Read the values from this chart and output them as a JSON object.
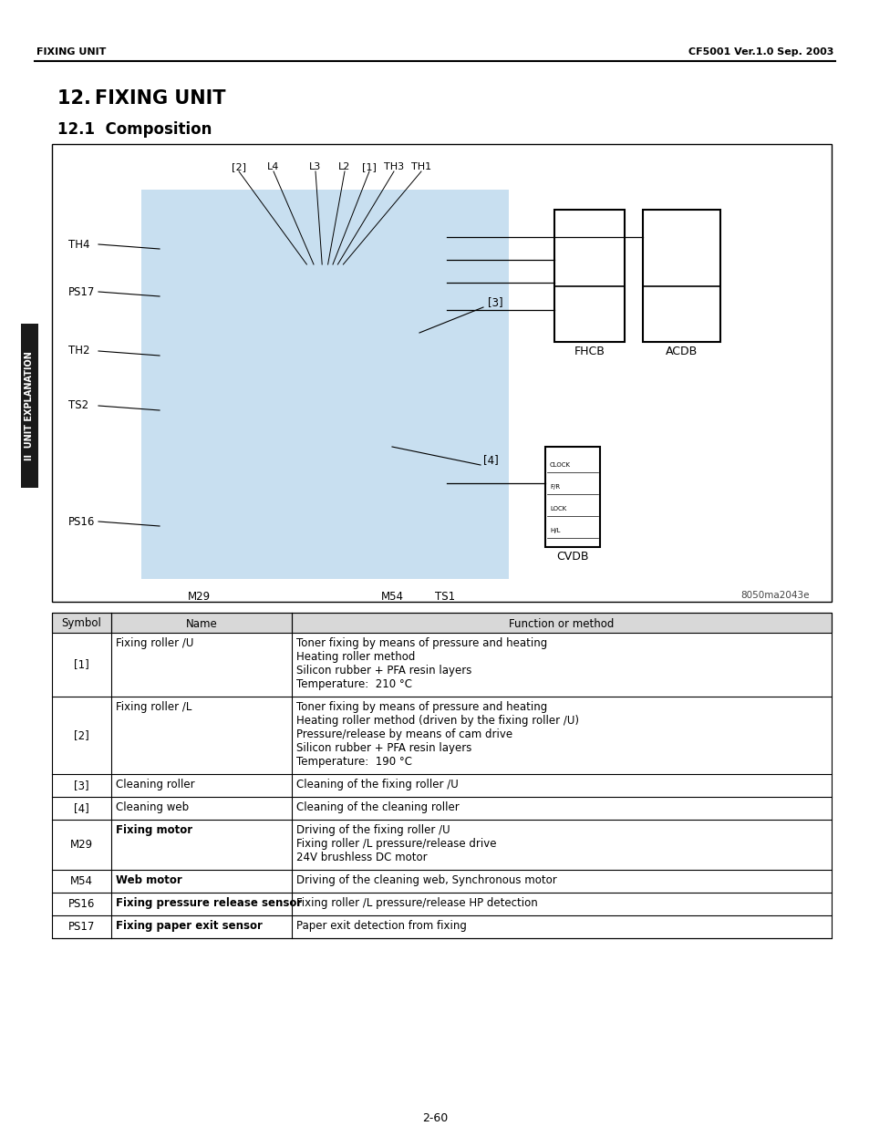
{
  "page_title_left": "FIXING UNIT",
  "page_title_right": "CF5001 Ver.1.0 Sep. 2003",
  "section_title": "12. FIXING UNIT",
  "subsection_title": "12.1  Composition",
  "sidebar_text": "II  UNIT EXPLANATION",
  "image_label": "8050ma2043e",
  "diagram_labels_top": [
    "[2]",
    "L4",
    "L3",
    "L2",
    "[1]",
    "TH3",
    "TH1"
  ],
  "diagram_labels_left": [
    [
      "TH4",
      268
    ],
    [
      "PS17",
      320
    ],
    [
      "TH2",
      385
    ],
    [
      "TS2",
      445
    ],
    [
      "PS16",
      572
    ]
  ],
  "diagram_labels_bottom": [
    [
      "M29",
      218
    ],
    [
      "M54",
      430
    ],
    [
      "TS1",
      488
    ]
  ],
  "diagram_box_labels_small": [
    "CLOCK",
    "F/R",
    "LOCK",
    "H/L"
  ],
  "table_headers": [
    "Symbol",
    "Name",
    "Function or method"
  ],
  "table_rows": [
    {
      "symbol": "[1]",
      "name": "Fixing roller /U",
      "functions": [
        "Toner fixing by means of pressure and heating",
        "Heating roller method",
        "Silicon rubber + PFA resin layers",
        "Temperature:  210 °C"
      ]
    },
    {
      "symbol": "[2]",
      "name": "Fixing roller /L",
      "functions": [
        "Toner fixing by means of pressure and heating",
        "Heating roller method (driven by the fixing roller /U)",
        "Pressure/release by means of cam drive",
        "Silicon rubber + PFA resin layers",
        "Temperature:  190 °C"
      ]
    },
    {
      "symbol": "[3]",
      "name": "Cleaning roller",
      "functions": [
        "Cleaning of the fixing roller /U"
      ]
    },
    {
      "symbol": "[4]",
      "name": "Cleaning web",
      "functions": [
        "Cleaning of the cleaning roller"
      ]
    },
    {
      "symbol": "M29",
      "name": "Fixing motor",
      "functions": [
        "Driving of the fixing roller /U",
        "Fixing roller /L pressure/release drive",
        "24V brushless DC motor"
      ]
    },
    {
      "symbol": "M54",
      "name": "Web motor",
      "functions": [
        "Driving of the cleaning web, Synchronous motor"
      ]
    },
    {
      "symbol": "PS16",
      "name": "Fixing pressure release sensor",
      "functions": [
        "Fixing roller /L pressure/release HP detection"
      ]
    },
    {
      "symbol": "PS17",
      "name": "Fixing paper exit sensor",
      "functions": [
        "Paper exit detection from fixing"
      ]
    }
  ],
  "page_number": "2-60",
  "bg_color": "#ffffff",
  "sidebar_bg": "#1a1a1a",
  "sidebar_text_color": "#ffffff",
  "diagram_bg": "#c8dff0",
  "table_header_bg": "#d8d8d8"
}
